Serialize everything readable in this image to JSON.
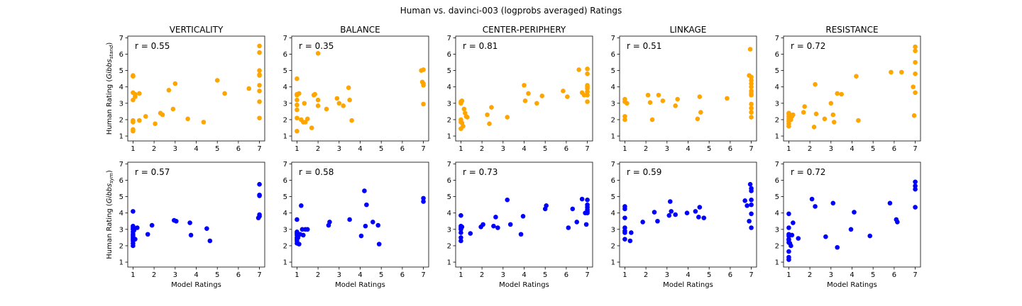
{
  "figure": {
    "title": "Human vs. davinci-003 (logprobs averaged) Ratings"
  },
  "rows": [
    {
      "ylabel_prefix": "Human Rating (",
      "ylabel_main": "Gibbs",
      "ylabel_sub": "stand",
      "ylabel_suffix": ")",
      "xlabel": "",
      "color": "#FFA500"
    },
    {
      "ylabel_prefix": "Human Rating (",
      "ylabel_main": "Gibbs",
      "ylabel_sub": "sym",
      "ylabel_suffix": ")",
      "xlabel": "Model Ratings",
      "color": "#0000FF"
    }
  ],
  "chart_data": [
    {
      "type": "scatter",
      "row": 0,
      "col": 0,
      "title": "VERTICALITY",
      "annotation": "r = 0.55",
      "color": "#FFA500",
      "xlim": [
        0.75,
        7.25
      ],
      "ylim": [
        0.7,
        7.1
      ],
      "x": [
        1,
        1,
        1,
        1,
        1,
        1,
        1,
        1,
        1.1,
        1.1,
        1.3,
        1.3,
        1.6,
        2.05,
        2.3,
        2.4,
        2.7,
        2.9,
        3.0,
        3.6,
        4.35,
        5.0,
        5.35,
        6.5,
        7,
        7,
        7,
        7,
        7,
        7,
        7,
        7,
        7
      ],
      "y": [
        4.7,
        4.65,
        3.65,
        3.2,
        1.95,
        1.85,
        1.4,
        1.3,
        3.4,
        3.55,
        3.6,
        1.95,
        2.2,
        1.75,
        2.4,
        2.3,
        3.8,
        2.65,
        4.2,
        2.05,
        1.85,
        4.4,
        3.6,
        3.9,
        6.5,
        6.1,
        5.0,
        4.7,
        4.1,
        3.75,
        3.1,
        2.1,
        4.75
      ]
    },
    {
      "type": "scatter",
      "row": 0,
      "col": 1,
      "title": "BALANCE",
      "annotation": "r = 0.35",
      "color": "#FFA500",
      "xlim": [
        0.75,
        7.25
      ],
      "ylim": [
        0.7,
        7.1
      ],
      "x": [
        1,
        1,
        1,
        1,
        1,
        1,
        1,
        1,
        1.1,
        1.2,
        1.3,
        1.35,
        1.4,
        1.5,
        1.7,
        1.8,
        1.85,
        2.0,
        2.0,
        2.0,
        2.4,
        2.9,
        3.0,
        3.2,
        3.45,
        3.5,
        3.6,
        6.9,
        7.0,
        7.0,
        7.0,
        7.0,
        6.95
      ],
      "y": [
        4.5,
        3.55,
        3.5,
        3.2,
        2.9,
        2.6,
        2.1,
        1.3,
        3.6,
        2.0,
        1.85,
        3.0,
        1.85,
        2.05,
        1.5,
        3.5,
        3.55,
        6.05,
        3.2,
        2.85,
        2.65,
        3.3,
        3.0,
        2.85,
        3.95,
        3.2,
        1.95,
        5.0,
        5.05,
        4.2,
        4.1,
        2.95,
        4.3
      ]
    },
    {
      "type": "scatter",
      "row": 0,
      "col": 2,
      "title": "CENTER-PERIPHERY",
      "annotation": "r = 0.81",
      "color": "#FFA500",
      "xlim": [
        0.75,
        7.25
      ],
      "ylim": [
        0.7,
        7.1
      ],
      "x": [
        1,
        1,
        1,
        1,
        1,
        1.05,
        1.05,
        1.1,
        1.15,
        1.2,
        1.25,
        1.3,
        2.25,
        2.35,
        2.45,
        3.2,
        4.0,
        4.05,
        4.2,
        4.6,
        4.85,
        5.85,
        6.05,
        6.6,
        6.75,
        6.85,
        7,
        7,
        7,
        7,
        7,
        7,
        7,
        7
      ],
      "y": [
        3.1,
        3.0,
        2.0,
        1.85,
        1.45,
        3.15,
        1.8,
        1.6,
        2.65,
        2.4,
        2.2,
        2.15,
        2.3,
        1.75,
        2.75,
        2.15,
        4.1,
        3.15,
        3.6,
        3.0,
        3.45,
        3.75,
        3.4,
        5.05,
        3.65,
        3.5,
        5.1,
        4.8,
        4.1,
        3.9,
        3.7,
        3.5,
        3.1,
        4.0
      ]
    },
    {
      "type": "scatter",
      "row": 0,
      "col": 3,
      "title": "LINKAGE",
      "annotation": "r = 0.51",
      "color": "#FFA500",
      "xlim": [
        0.75,
        7.25
      ],
      "ylim": [
        0.7,
        7.1
      ],
      "x": [
        1,
        1,
        1,
        1,
        1.1,
        2.1,
        2.2,
        2.3,
        2.6,
        2.8,
        3.4,
        3.5,
        4.45,
        4.55,
        4.6,
        5.85,
        6.9,
        6.95,
        7,
        7,
        7,
        7,
        7,
        7,
        7,
        7,
        7,
        7,
        7
      ],
      "y": [
        3.25,
        3.1,
        2.2,
        2.0,
        3.0,
        3.5,
        3.05,
        2.0,
        3.5,
        3.15,
        2.85,
        3.25,
        2.05,
        3.4,
        2.45,
        3.3,
        4.7,
        6.3,
        4.6,
        4.4,
        4.2,
        4.0,
        3.75,
        3.6,
        3.5,
        2.95,
        2.7,
        2.45,
        2.15
      ]
    },
    {
      "type": "scatter",
      "row": 0,
      "col": 4,
      "title": "RESISTANCE",
      "annotation": "r = 0.72",
      "color": "#FFA500",
      "xlim": [
        0.75,
        7.25
      ],
      "ylim": [
        0.7,
        7.1
      ],
      "x": [
        1,
        1,
        1,
        1,
        1,
        1,
        1,
        1.05,
        1.1,
        1.15,
        1.2,
        1.7,
        1.75,
        2.2,
        2.25,
        2.3,
        2.7,
        3.0,
        3.1,
        3.15,
        3.3,
        3.5,
        4.2,
        4.3,
        5.85,
        6.35,
        6.9,
        6.95,
        7,
        7,
        7,
        7,
        7
      ],
      "y": [
        2.35,
        2.2,
        2.05,
        1.9,
        1.75,
        1.6,
        2.4,
        2.3,
        2.0,
        2.2,
        2.3,
        2.45,
        2.8,
        1.55,
        4.15,
        2.35,
        2.05,
        3.0,
        2.3,
        1.85,
        3.6,
        3.55,
        4.65,
        1.95,
        4.9,
        4.9,
        4.0,
        2.25,
        6.45,
        6.2,
        5.5,
        4.8,
        3.65
      ]
    },
    {
      "type": "scatter",
      "row": 1,
      "col": 0,
      "title": "",
      "annotation": "r = 0.57",
      "color": "#0000FF",
      "xlim": [
        0.75,
        7.25
      ],
      "ylim": [
        0.7,
        7.1
      ],
      "x": [
        1,
        1,
        1,
        1,
        1,
        1,
        1,
        1,
        1,
        1,
        1,
        1,
        1.05,
        1.1,
        1.2,
        1.7,
        1.9,
        2.95,
        3.05,
        3.7,
        3.75,
        4.5,
        4.65,
        6.95,
        7,
        7,
        7,
        7,
        7
      ],
      "y": [
        4.1,
        3.2,
        3.1,
        3.0,
        2.85,
        2.7,
        2.6,
        2.5,
        2.4,
        2.3,
        2.15,
        2.0,
        2.95,
        2.4,
        3.1,
        2.7,
        3.25,
        3.55,
        3.5,
        3.4,
        2.65,
        3.05,
        2.3,
        3.7,
        5.75,
        5.1,
        5.05,
        3.9,
        3.8
      ]
    },
    {
      "type": "scatter",
      "row": 1,
      "col": 1,
      "title": "",
      "annotation": "r = 0.58",
      "color": "#0000FF",
      "xlim": [
        0.75,
        7.25
      ],
      "ylim": [
        0.7,
        7.1
      ],
      "x": [
        1,
        1,
        1,
        1,
        1,
        1,
        1,
        1,
        1.05,
        1.1,
        1.15,
        1.2,
        1.25,
        1.3,
        1.4,
        1.5,
        2.5,
        2.55,
        3.5,
        4.05,
        4.2,
        4.25,
        4.3,
        4.6,
        4.85,
        4.9,
        7.0,
        7.0
      ],
      "y": [
        3.6,
        2.85,
        2.75,
        2.65,
        2.5,
        2.4,
        2.3,
        2.15,
        2.5,
        2.1,
        2.7,
        4.45,
        3.0,
        2.65,
        3.0,
        3.0,
        3.25,
        3.45,
        3.6,
        2.6,
        5.35,
        3.2,
        4.5,
        3.45,
        3.25,
        2.1,
        4.9,
        4.7
      ]
    },
    {
      "type": "scatter",
      "row": 1,
      "col": 2,
      "title": "",
      "annotation": "r = 0.73",
      "color": "#0000FF",
      "xlim": [
        0.75,
        7.25
      ],
      "ylim": [
        0.7,
        7.1
      ],
      "x": [
        1,
        1,
        1,
        1,
        1,
        1,
        1,
        1.05,
        1.45,
        1.95,
        2.05,
        2.55,
        2.65,
        2.75,
        3.2,
        3.35,
        3.85,
        3.95,
        5.0,
        5.05,
        6.1,
        6.3,
        6.5,
        6.75,
        6.9,
        6.95,
        7,
        7,
        7,
        7,
        7,
        7
      ],
      "y": [
        3.85,
        3.2,
        3.1,
        3.0,
        2.8,
        2.5,
        2.3,
        3.15,
        2.75,
        3.15,
        3.3,
        3.2,
        3.75,
        3.1,
        4.8,
        3.3,
        2.7,
        3.8,
        4.25,
        4.45,
        3.1,
        4.25,
        3.45,
        4.85,
        4.0,
        3.3,
        4.8,
        4.5,
        4.35,
        4.2,
        4.1,
        4.0
      ]
    },
    {
      "type": "scatter",
      "row": 1,
      "col": 3,
      "title": "",
      "annotation": "r = 0.59",
      "color": "#0000FF",
      "xlim": [
        0.75,
        7.25
      ],
      "ylim": [
        0.7,
        7.1
      ],
      "x": [
        1,
        1,
        1,
        1,
        1,
        1,
        1,
        1.25,
        1.3,
        1.85,
        2.4,
        2.55,
        3.1,
        3.15,
        3.2,
        3.4,
        3.95,
        4.35,
        4.5,
        4.55,
        4.75,
        6.7,
        6.8,
        6.9,
        6.95,
        7,
        7,
        7,
        7,
        7,
        7
      ],
      "y": [
        4.4,
        4.25,
        3.7,
        3.1,
        2.9,
        2.8,
        2.4,
        2.3,
        2.8,
        3.45,
        4.05,
        3.5,
        3.85,
        4.7,
        4.1,
        3.9,
        4.0,
        4.1,
        3.75,
        4.35,
        3.7,
        4.75,
        4.45,
        3.5,
        5.75,
        5.5,
        5.35,
        4.8,
        4.5,
        3.95,
        3.1
      ]
    },
    {
      "type": "scatter",
      "row": 1,
      "col": 4,
      "title": "",
      "annotation": "r = 0.72",
      "color": "#0000FF",
      "xlim": [
        0.75,
        7.25
      ],
      "ylim": [
        0.7,
        7.1
      ],
      "x": [
        1,
        1,
        1,
        1,
        1,
        1,
        1,
        1,
        1,
        1,
        1.05,
        1.1,
        1.15,
        1.2,
        1.45,
        2.1,
        2.25,
        2.75,
        3.1,
        3.3,
        3.95,
        4.1,
        4.85,
        5.8,
        6.1,
        6.15,
        7,
        7,
        7,
        7
      ],
      "y": [
        3.95,
        3.1,
        2.7,
        2.6,
        2.4,
        2.2,
        1.65,
        1.3,
        1.15,
        2.35,
        2.15,
        2.0,
        2.65,
        3.4,
        2.45,
        4.85,
        4.4,
        2.55,
        4.6,
        1.9,
        3.0,
        4.05,
        2.6,
        4.6,
        3.6,
        3.45,
        5.9,
        5.65,
        5.45,
        4.35
      ]
    }
  ]
}
